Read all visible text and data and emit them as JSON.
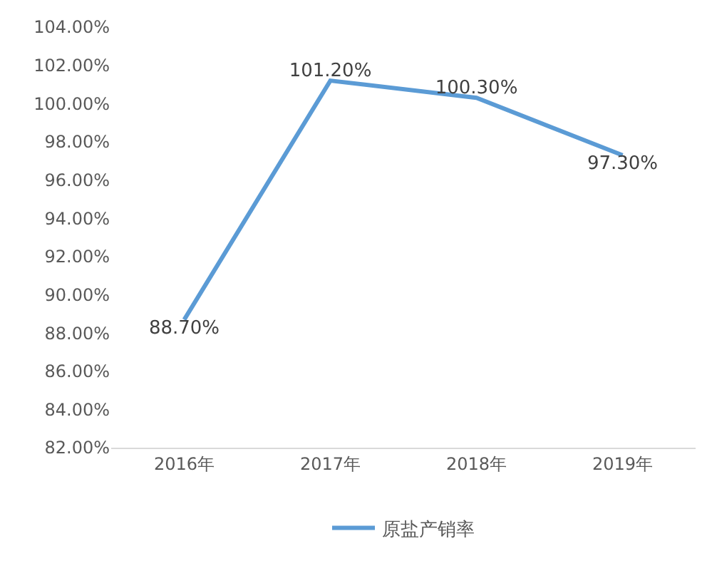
{
  "chart_data": {
    "type": "line",
    "categories": [
      "2016年",
      "2017年",
      "2018年",
      "2019年"
    ],
    "series": [
      {
        "name": "原盐产销率",
        "color": "#5b9bd5",
        "values": [
          88.7,
          101.2,
          100.3,
          97.3
        ],
        "value_labels": [
          "88.70%",
          "101.20%",
          "100.30%",
          "97.30%"
        ]
      }
    ],
    "ylim": [
      82,
      104
    ],
    "yticks": [
      {
        "value": 82,
        "label": "82.00%"
      },
      {
        "value": 84,
        "label": "84.00%"
      },
      {
        "value": 86,
        "label": "86.00%"
      },
      {
        "value": 88,
        "label": "88.00%"
      },
      {
        "value": 90,
        "label": "90.00%"
      },
      {
        "value": 92,
        "label": "92.00%"
      },
      {
        "value": 94,
        "label": "94.00%"
      },
      {
        "value": 96,
        "label": "96.00%"
      },
      {
        "value": 98,
        "label": "98.00%"
      },
      {
        "value": 100,
        "label": "100.00%"
      },
      {
        "value": 102,
        "label": "102.00%"
      },
      {
        "value": 104,
        "label": "104.00%"
      }
    ],
    "legend": "bottom",
    "marker": "none",
    "line_style": "solid"
  }
}
